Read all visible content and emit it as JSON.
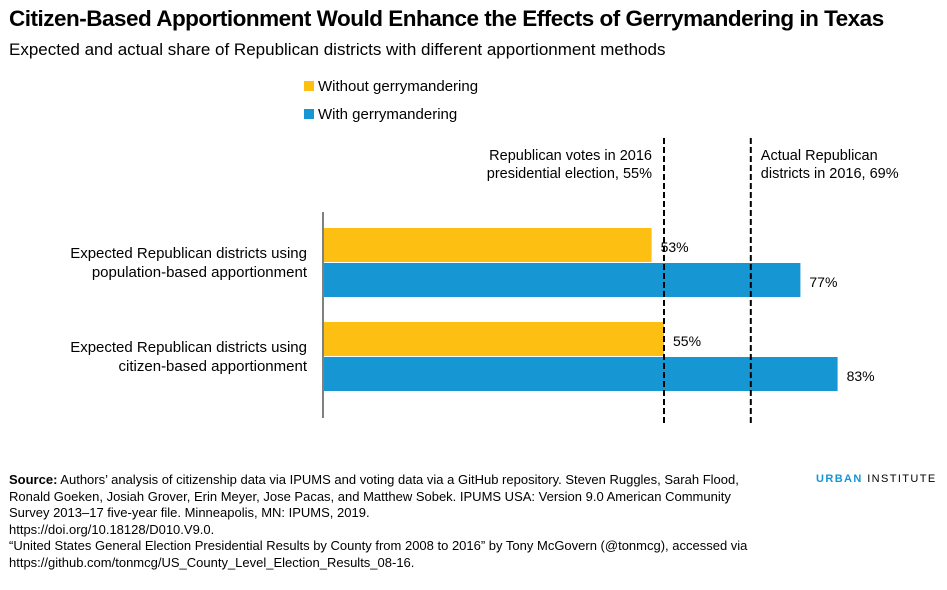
{
  "title": "Citizen-Based Apportionment Would Enhance the Effects of Gerrymandering in Texas",
  "subtitle": "Expected and actual share of Republican districts with different apportionment methods",
  "chart_data": {
    "type": "bar",
    "orientation": "horizontal",
    "title": "Citizen-Based Apportionment Would Enhance the Effects of Gerrymandering in Texas",
    "subtitle": "Expected and actual share of Republican districts with different apportionment methods",
    "categories": [
      [
        "Expected Republican districts using",
        "population-based apportionment"
      ],
      [
        "Expected Republican districts using",
        "citizen-based apportionment"
      ]
    ],
    "series": [
      {
        "name": "Without gerrymandering",
        "values": [
          53,
          55
        ],
        "labels": [
          "53%",
          "55%"
        ],
        "color": "#fdbf11"
      },
      {
        "name": "With gerrymandering",
        "values": [
          77,
          83
        ],
        "labels": [
          "77%",
          "83%"
        ],
        "color": "#1696d2"
      }
    ],
    "xlim": [
      0,
      100
    ],
    "grid": false,
    "legend_placement": "top",
    "reference_lines": [
      {
        "value": 55,
        "label": [
          "Republican votes in 2016",
          "presidential election, 55%"
        ],
        "label_side": "left"
      },
      {
        "value": 69,
        "label": [
          "Actual Republican",
          "districts in 2016, 69%"
        ],
        "label_side": "right"
      }
    ]
  },
  "source": {
    "label": "Source:",
    "text": " Authors’ analysis of citizenship data via IPUMS and voting data via a GitHub repository. Steven Ruggles, Sarah Flood, Ronald Goeken, Josiah Grover, Erin Meyer, Jose Pacas, and Matthew Sobek. IPUMS USA: Version 9.0 American Community Survey 2013–17 five-year file. Minneapolis, MN: IPUMS, 2019.\nhttps://doi.org/10.18128/D010.V9.0.\n“United States General Election Presidential Results by County from 2008 to 2016” by Tony McGovern (@tonmcg), accessed via https://github.com/tonmcg/US_County_Level_Election_Results_08-16."
  },
  "logo": {
    "urban": "URBAN",
    "institute": " INSTITUTE"
  },
  "colors": {
    "yellow": "#fdbf11",
    "blue": "#1696d2",
    "text": "#000000"
  }
}
